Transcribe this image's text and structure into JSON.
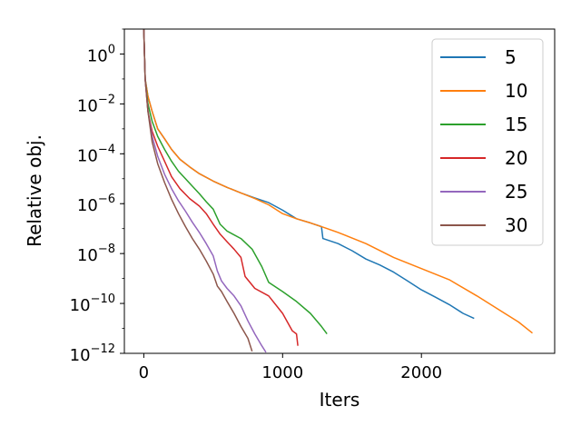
{
  "chart_data": {
    "type": "line",
    "title": "",
    "xlabel": "Iters",
    "ylabel": "Relative obj.",
    "xlim": [
      -140,
      2960
    ],
    "ylim": [
      1e-12,
      10
    ],
    "yscale": "log",
    "x_ticks": [
      {
        "value": 0,
        "label": "0"
      },
      {
        "value": 1000,
        "label": "1000"
      },
      {
        "value": 2000,
        "label": "2000"
      }
    ],
    "y_ticks": [
      {
        "exp": 0,
        "base": "10",
        "sup": "0"
      },
      {
        "exp": -2,
        "base": "10",
        "sup": "−2"
      },
      {
        "exp": -4,
        "base": "10",
        "sup": "−4"
      },
      {
        "exp": -6,
        "base": "10",
        "sup": "−6"
      },
      {
        "exp": -8,
        "base": "10",
        "sup": "−8"
      },
      {
        "exp": -10,
        "base": "10",
        "sup": "−10"
      },
      {
        "exp": -12,
        "base": "10",
        "sup": "−12"
      }
    ],
    "grid": false,
    "legend_position": "top-right",
    "series": [
      {
        "name": "5",
        "color": "#1f77b4",
        "points": [
          [
            0,
            10
          ],
          [
            10,
            0.1
          ],
          [
            30,
            0.02
          ],
          [
            60,
            0.005
          ],
          [
            100,
            0.001
          ],
          [
            150,
            0.0004
          ],
          [
            200,
            0.00015
          ],
          [
            260,
            6e-05
          ],
          [
            330,
            3e-05
          ],
          [
            400,
            1.6e-05
          ],
          [
            500,
            8e-06
          ],
          [
            600,
            4.5e-06
          ],
          [
            700,
            2.7e-06
          ],
          [
            800,
            1.7e-06
          ],
          [
            900,
            1.1e-06
          ],
          [
            1000,
            5.5e-07
          ],
          [
            1100,
            2.5e-07
          ],
          [
            1200,
            1.7e-07
          ],
          [
            1280,
            1.2e-07
          ],
          [
            1290,
            4e-08
          ],
          [
            1400,
            2.5e-08
          ],
          [
            1500,
            1.3e-08
          ],
          [
            1600,
            6e-09
          ],
          [
            1700,
            3.5e-09
          ],
          [
            1800,
            1.8e-09
          ],
          [
            1900,
            8e-10
          ],
          [
            2000,
            3.5e-10
          ],
          [
            2100,
            1.8e-10
          ],
          [
            2200,
            9e-11
          ],
          [
            2300,
            4e-11
          ],
          [
            2380,
            2.5e-11
          ]
        ]
      },
      {
        "name": "10",
        "color": "#ff7f0e",
        "points": [
          [
            0,
            10
          ],
          [
            10,
            0.1
          ],
          [
            30,
            0.02
          ],
          [
            60,
            0.005
          ],
          [
            100,
            0.001
          ],
          [
            150,
            0.0004
          ],
          [
            200,
            0.00015
          ],
          [
            260,
            6e-05
          ],
          [
            330,
            3e-05
          ],
          [
            400,
            1.6e-05
          ],
          [
            500,
            8e-06
          ],
          [
            600,
            4.5e-06
          ],
          [
            700,
            2.7e-06
          ],
          [
            800,
            1.6e-06
          ],
          [
            900,
            9e-07
          ],
          [
            1000,
            4e-07
          ],
          [
            1100,
            2.5e-07
          ],
          [
            1200,
            1.7e-07
          ],
          [
            1300,
            1.1e-07
          ],
          [
            1400,
            7e-08
          ],
          [
            1600,
            2.5e-08
          ],
          [
            1800,
            7e-09
          ],
          [
            2000,
            2.5e-09
          ],
          [
            2200,
            9e-10
          ],
          [
            2400,
            2e-10
          ],
          [
            2600,
            4e-11
          ],
          [
            2700,
            1.8e-11
          ],
          [
            2800,
            6.5e-12
          ]
        ]
      },
      {
        "name": "15",
        "color": "#2ca02c",
        "points": [
          [
            0,
            10
          ],
          [
            10,
            0.1
          ],
          [
            30,
            0.01
          ],
          [
            60,
            0.002
          ],
          [
            100,
            0.0005
          ],
          [
            150,
            0.00015
          ],
          [
            200,
            5e-05
          ],
          [
            250,
            2e-05
          ],
          [
            300,
            1e-05
          ],
          [
            350,
            5e-06
          ],
          [
            400,
            2.5e-06
          ],
          [
            450,
            1.2e-06
          ],
          [
            500,
            6e-07
          ],
          [
            550,
            1.5e-07
          ],
          [
            600,
            8e-08
          ],
          [
            700,
            4e-08
          ],
          [
            780,
            1.5e-08
          ],
          [
            850,
            3e-09
          ],
          [
            900,
            7e-10
          ],
          [
            1000,
            3e-10
          ],
          [
            1100,
            1.2e-10
          ],
          [
            1200,
            4e-11
          ],
          [
            1280,
            1.2e-11
          ],
          [
            1320,
            6e-12
          ]
        ]
      },
      {
        "name": "20",
        "color": "#d62728",
        "points": [
          [
            0,
            10
          ],
          [
            10,
            0.1
          ],
          [
            30,
            0.005
          ],
          [
            60,
            0.0008
          ],
          [
            100,
            0.0002
          ],
          [
            150,
            5e-05
          ],
          [
            200,
            1.2e-05
          ],
          [
            260,
            4e-06
          ],
          [
            330,
            1.6e-06
          ],
          [
            400,
            8e-07
          ],
          [
            450,
            4e-07
          ],
          [
            500,
            1.5e-07
          ],
          [
            550,
            6e-08
          ],
          [
            600,
            3e-08
          ],
          [
            650,
            1.5e-08
          ],
          [
            700,
            7e-09
          ],
          [
            730,
            1.2e-09
          ],
          [
            800,
            4e-10
          ],
          [
            900,
            2e-10
          ],
          [
            1000,
            4e-11
          ],
          [
            1070,
            8e-12
          ],
          [
            1100,
            6e-12
          ],
          [
            1110,
            2e-12
          ]
        ]
      },
      {
        "name": "25",
        "color": "#9467bd",
        "points": [
          [
            0,
            10
          ],
          [
            10,
            0.1
          ],
          [
            30,
            0.005
          ],
          [
            60,
            0.0005
          ],
          [
            100,
            8e-05
          ],
          [
            150,
            1.5e-05
          ],
          [
            200,
            4e-06
          ],
          [
            250,
            1.3e-06
          ],
          [
            300,
            5e-07
          ],
          [
            350,
            1.8e-07
          ],
          [
            400,
            7e-08
          ],
          [
            450,
            2.5e-08
          ],
          [
            500,
            8e-09
          ],
          [
            530,
            2e-09
          ],
          [
            560,
            8e-10
          ],
          [
            600,
            4e-10
          ],
          [
            650,
            2e-10
          ],
          [
            700,
            8e-11
          ],
          [
            750,
            2e-11
          ],
          [
            800,
            6e-12
          ],
          [
            850,
            2e-12
          ],
          [
            880,
            1.1e-12
          ]
        ]
      },
      {
        "name": "30",
        "color": "#8c564b",
        "points": [
          [
            0,
            10
          ],
          [
            10,
            0.1
          ],
          [
            30,
            0.005
          ],
          [
            60,
            0.0003
          ],
          [
            100,
            4e-05
          ],
          [
            150,
            7e-06
          ],
          [
            200,
            1.5e-06
          ],
          [
            250,
            4e-07
          ],
          [
            300,
            1.2e-07
          ],
          [
            350,
            4e-08
          ],
          [
            400,
            1.5e-08
          ],
          [
            450,
            5e-09
          ],
          [
            500,
            1.5e-09
          ],
          [
            530,
            5e-10
          ],
          [
            560,
            3e-10
          ],
          [
            600,
            1.2e-10
          ],
          [
            650,
            4e-11
          ],
          [
            700,
            1.2e-11
          ],
          [
            750,
            4e-12
          ],
          [
            780,
            1.2e-12
          ]
        ]
      }
    ]
  }
}
